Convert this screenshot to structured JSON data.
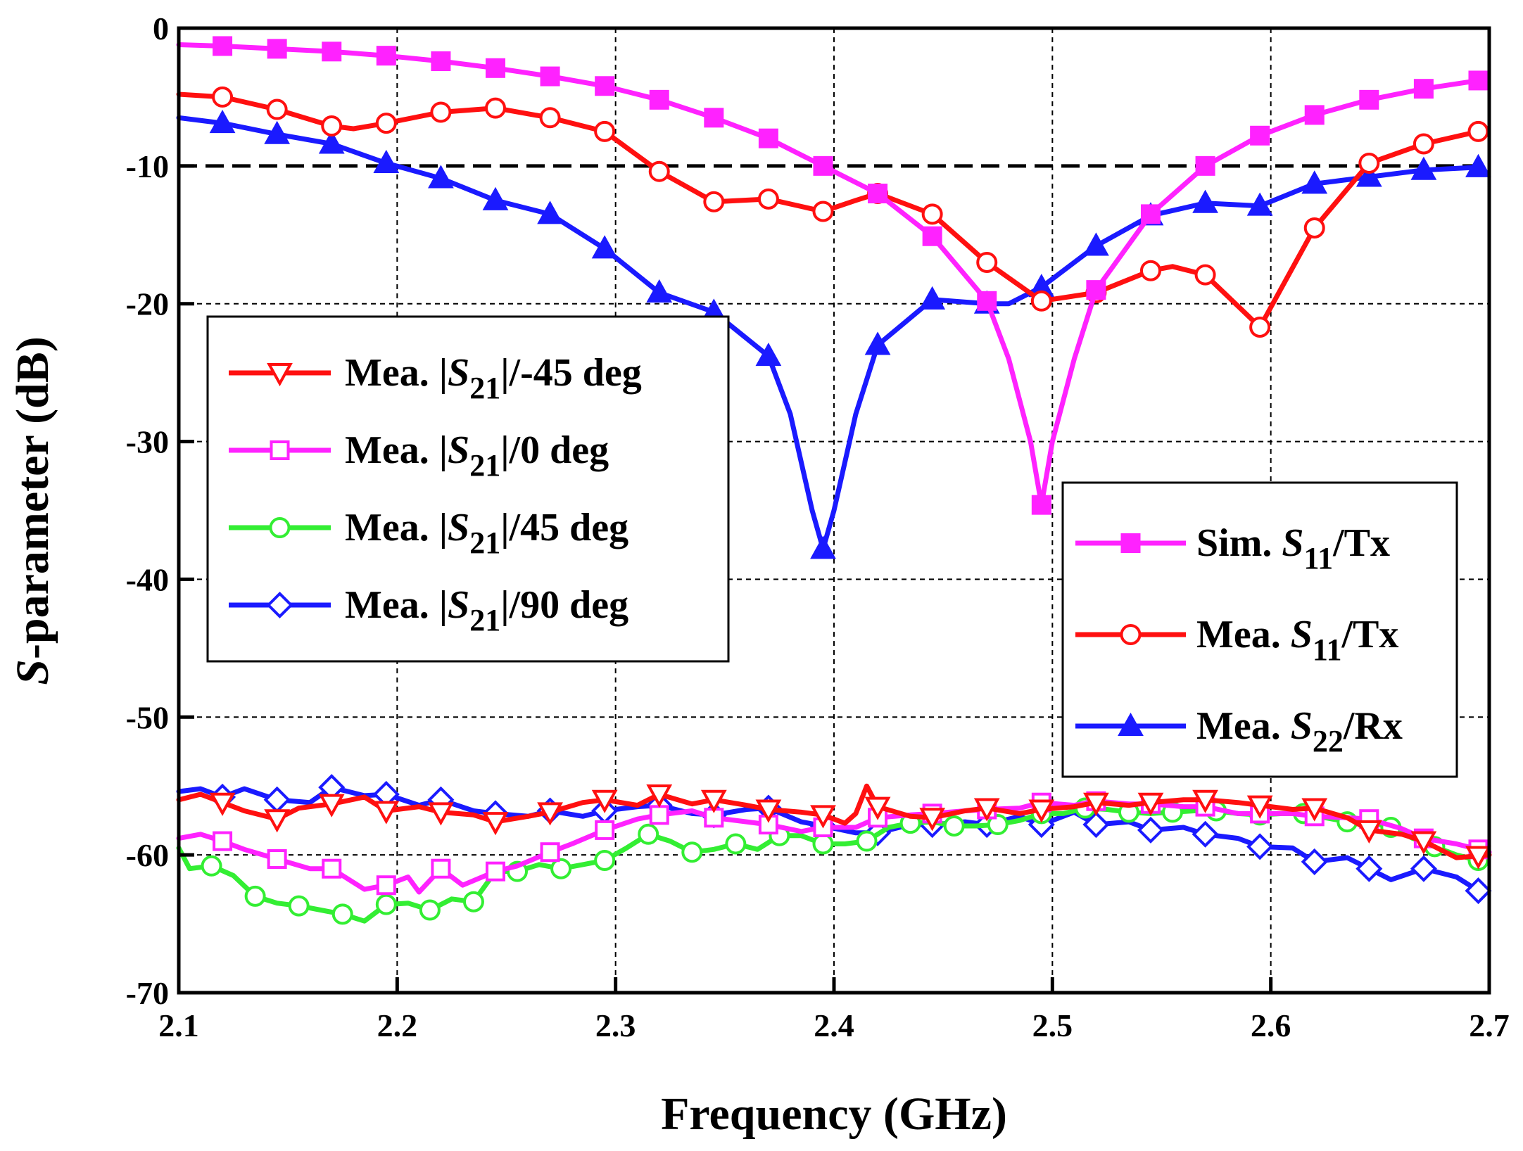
{
  "chart_data": {
    "type": "line",
    "xlabel": "Frequency (GHz)",
    "ylabel_italic": "S",
    "ylabel_rest": "-parameter (dB)",
    "xlim": [
      2.1,
      2.7
    ],
    "ylim": [
      -70,
      0
    ],
    "xticks": [
      "2.1",
      "2.2",
      "2.3",
      "2.4",
      "2.5",
      "2.6",
      "2.7"
    ],
    "yticks": [
      "0",
      "-10",
      "-20",
      "-30",
      "-40",
      "-50",
      "-60",
      "-70"
    ],
    "grid": true,
    "reference_line": {
      "y": -10,
      "style": "dashed"
    },
    "legend_left": {
      "placement": "middle-left",
      "entries": [
        {
          "series": "s21m45",
          "prefix": "Mea. |",
          "italic": "S",
          "sub": "21",
          "suffix": "|/-45 deg"
        },
        {
          "series": "s21_0",
          "prefix": "Mea. |",
          "italic": "S",
          "sub": "21",
          "suffix": "|/0 deg"
        },
        {
          "series": "s21_45",
          "prefix": "Mea. |",
          "italic": "S",
          "sub": "21",
          "suffix": "|/45 deg"
        },
        {
          "series": "s21_90",
          "prefix": "Mea. |",
          "italic": "S",
          "sub": "21",
          "suffix": "|/90 deg"
        }
      ]
    },
    "legend_right": {
      "placement": "lower-right",
      "entries": [
        {
          "series": "sim_s11",
          "prefix": "Sim. ",
          "italic": "S",
          "sub": "11",
          "suffix": "/Tx"
        },
        {
          "series": "mea_s11",
          "prefix": "Mea. ",
          "italic": "S",
          "sub": "11",
          "suffix": "/Tx"
        },
        {
          "series": "mea_s22",
          "prefix": "Mea. ",
          "italic": "S",
          "sub": "22",
          "suffix": "/Rx"
        }
      ]
    },
    "series": [
      {
        "id": "sim_s11",
        "name": "Sim. S11/Tx",
        "color": "#ff22ff",
        "marker": "square",
        "filled": true,
        "x": [
          2.1,
          2.12,
          2.145,
          2.17,
          2.195,
          2.22,
          2.245,
          2.27,
          2.295,
          2.32,
          2.345,
          2.37,
          2.395,
          2.42,
          2.445,
          2.47,
          2.48,
          2.49,
          2.495,
          2.5,
          2.51,
          2.52,
          2.545,
          2.57,
          2.595,
          2.62,
          2.645,
          2.67,
          2.695
        ],
        "y": [
          -1.2,
          -1.3,
          -1.5,
          -1.7,
          -2.0,
          -2.4,
          -2.9,
          -3.5,
          -4.2,
          -5.2,
          -6.5,
          -8.0,
          -10.0,
          -12.0,
          -15.1,
          -19.8,
          -24.0,
          -30.0,
          -34.6,
          -30.0,
          -24.0,
          -19.0,
          -13.5,
          -10.0,
          -7.8,
          -6.3,
          -5.2,
          -4.4,
          -3.8
        ],
        "marker_x": [
          2.12,
          2.145,
          2.17,
          2.195,
          2.22,
          2.245,
          2.27,
          2.295,
          2.32,
          2.345,
          2.37,
          2.395,
          2.42,
          2.445,
          2.47,
          2.495,
          2.52,
          2.545,
          2.57,
          2.595,
          2.62,
          2.645,
          2.67,
          2.695
        ]
      },
      {
        "id": "mea_s11",
        "name": "Mea. S11/Tx",
        "color": "#ff1010",
        "marker": "circle",
        "filled": false,
        "x": [
          2.1,
          2.12,
          2.145,
          2.17,
          2.18,
          2.195,
          2.22,
          2.245,
          2.27,
          2.295,
          2.32,
          2.345,
          2.37,
          2.395,
          2.41,
          2.42,
          2.445,
          2.47,
          2.495,
          2.52,
          2.545,
          2.555,
          2.57,
          2.595,
          2.62,
          2.645,
          2.67,
          2.695
        ],
        "y": [
          -4.8,
          -5.0,
          -5.9,
          -7.1,
          -7.3,
          -6.9,
          -6.1,
          -5.8,
          -6.5,
          -7.5,
          -10.4,
          -12.6,
          -12.4,
          -13.3,
          -12.5,
          -12.0,
          -13.5,
          -17.0,
          -19.8,
          -19.2,
          -17.6,
          -17.3,
          -17.9,
          -21.7,
          -14.5,
          -9.8,
          -8.4,
          -7.5
        ],
        "marker_x": [
          2.12,
          2.145,
          2.17,
          2.195,
          2.22,
          2.245,
          2.27,
          2.295,
          2.32,
          2.345,
          2.37,
          2.395,
          2.42,
          2.445,
          2.47,
          2.495,
          2.52,
          2.545,
          2.57,
          2.595,
          2.62,
          2.645,
          2.67,
          2.695
        ]
      },
      {
        "id": "mea_s22",
        "name": "Mea. S22/Rx",
        "color": "#1a1aff",
        "marker": "triangle-up",
        "filled": true,
        "x": [
          2.1,
          2.12,
          2.145,
          2.17,
          2.195,
          2.22,
          2.245,
          2.27,
          2.295,
          2.32,
          2.345,
          2.37,
          2.38,
          2.39,
          2.395,
          2.4,
          2.41,
          2.42,
          2.445,
          2.47,
          2.48,
          2.495,
          2.52,
          2.545,
          2.57,
          2.595,
          2.62,
          2.645,
          2.67,
          2.695
        ],
        "y": [
          -6.5,
          -6.9,
          -7.7,
          -8.4,
          -9.8,
          -10.9,
          -12.5,
          -13.5,
          -16.0,
          -19.2,
          -20.6,
          -23.8,
          -28.0,
          -35.0,
          -37.8,
          -35.0,
          -28.0,
          -23.0,
          -19.7,
          -20.0,
          -20.0,
          -18.8,
          -15.8,
          -13.6,
          -12.7,
          -12.9,
          -11.3,
          -10.8,
          -10.3,
          -10.1
        ],
        "marker_x": [
          2.12,
          2.145,
          2.17,
          2.195,
          2.22,
          2.245,
          2.27,
          2.295,
          2.32,
          2.345,
          2.37,
          2.395,
          2.42,
          2.445,
          2.47,
          2.495,
          2.52,
          2.545,
          2.57,
          2.595,
          2.62,
          2.645,
          2.67,
          2.695
        ]
      },
      {
        "id": "s21m45",
        "name": "Mea. |S21|/-45 deg",
        "color": "#ff1010",
        "marker": "triangle-down",
        "filled": false,
        "x": [
          2.1,
          2.11,
          2.12,
          2.13,
          2.145,
          2.155,
          2.17,
          2.185,
          2.195,
          2.21,
          2.22,
          2.235,
          2.245,
          2.26,
          2.27,
          2.285,
          2.295,
          2.31,
          2.32,
          2.335,
          2.345,
          2.36,
          2.37,
          2.385,
          2.395,
          2.405,
          2.41,
          2.415,
          2.42,
          2.435,
          2.445,
          2.46,
          2.47,
          2.485,
          2.495,
          2.51,
          2.52,
          2.535,
          2.545,
          2.56,
          2.57,
          2.585,
          2.595,
          2.61,
          2.62,
          2.635,
          2.645,
          2.66,
          2.67,
          2.685,
          2.7
        ],
        "y": [
          -56.0,
          -55.6,
          -56.2,
          -56.8,
          -57.4,
          -56.6,
          -56.3,
          -55.8,
          -56.8,
          -56.5,
          -56.9,
          -57.1,
          -57.6,
          -57.2,
          -56.9,
          -56.2,
          -56.0,
          -56.4,
          -55.6,
          -56.3,
          -56.0,
          -56.4,
          -56.7,
          -56.9,
          -57.1,
          -57.7,
          -57.0,
          -55.0,
          -56.5,
          -57.2,
          -57.3,
          -56.8,
          -56.6,
          -57.0,
          -56.7,
          -56.5,
          -56.2,
          -56.4,
          -56.2,
          -56.0,
          -56.0,
          -56.2,
          -56.4,
          -56.7,
          -56.6,
          -57.3,
          -58.2,
          -58.5,
          -59.0,
          -60.2,
          -60.0
        ],
        "marker_x": [
          2.12,
          2.145,
          2.17,
          2.195,
          2.22,
          2.245,
          2.27,
          2.295,
          2.32,
          2.345,
          2.37,
          2.395,
          2.42,
          2.445,
          2.47,
          2.495,
          2.52,
          2.545,
          2.57,
          2.595,
          2.62,
          2.645,
          2.67,
          2.695
        ]
      },
      {
        "id": "s21_0",
        "name": "Mea. |S21|/0 deg",
        "color": "#ff22ff",
        "marker": "square",
        "filled": false,
        "x": [
          2.1,
          2.11,
          2.12,
          2.13,
          2.145,
          2.16,
          2.17,
          2.185,
          2.195,
          2.205,
          2.21,
          2.22,
          2.23,
          2.245,
          2.255,
          2.27,
          2.28,
          2.295,
          2.31,
          2.32,
          2.335,
          2.345,
          2.36,
          2.37,
          2.385,
          2.395,
          2.41,
          2.42,
          2.435,
          2.445,
          2.46,
          2.47,
          2.485,
          2.495,
          2.51,
          2.52,
          2.535,
          2.545,
          2.56,
          2.57,
          2.585,
          2.595,
          2.61,
          2.62,
          2.635,
          2.645,
          2.66,
          2.67,
          2.685,
          2.7
        ],
        "y": [
          -58.8,
          -58.5,
          -59.0,
          -59.6,
          -60.3,
          -61.0,
          -61.0,
          -62.5,
          -62.2,
          -61.6,
          -62.7,
          -61.0,
          -62.2,
          -61.2,
          -60.8,
          -59.8,
          -59.2,
          -58.2,
          -57.4,
          -57.1,
          -56.8,
          -57.3,
          -57.6,
          -57.8,
          -58.3,
          -58.0,
          -58.0,
          -57.3,
          -57.1,
          -57.0,
          -56.8,
          -56.7,
          -56.6,
          -56.2,
          -56.4,
          -56.1,
          -56.3,
          -56.3,
          -56.5,
          -56.5,
          -57.0,
          -57.0,
          -57.0,
          -57.2,
          -57.3,
          -57.4,
          -58.1,
          -58.8,
          -59.2,
          -59.8
        ],
        "marker_x": [
          2.12,
          2.145,
          2.17,
          2.195,
          2.22,
          2.245,
          2.27,
          2.295,
          2.32,
          2.345,
          2.37,
          2.395,
          2.42,
          2.445,
          2.47,
          2.495,
          2.52,
          2.545,
          2.57,
          2.595,
          2.62,
          2.645,
          2.67,
          2.695
        ]
      },
      {
        "id": "s21_45",
        "name": "Mea. |S21|/45 deg",
        "color": "#33ee33",
        "marker": "circle",
        "filled": false,
        "x": [
          2.1,
          2.105,
          2.115,
          2.125,
          2.135,
          2.145,
          2.155,
          2.165,
          2.175,
          2.185,
          2.195,
          2.205,
          2.215,
          2.225,
          2.235,
          2.245,
          2.255,
          2.265,
          2.275,
          2.285,
          2.295,
          2.305,
          2.315,
          2.325,
          2.335,
          2.345,
          2.355,
          2.365,
          2.375,
          2.385,
          2.395,
          2.405,
          2.415,
          2.425,
          2.435,
          2.445,
          2.455,
          2.465,
          2.475,
          2.485,
          2.495,
          2.505,
          2.515,
          2.525,
          2.535,
          2.545,
          2.555,
          2.565,
          2.575,
          2.585,
          2.595,
          2.605,
          2.615,
          2.625,
          2.635,
          2.645,
          2.655,
          2.665,
          2.675,
          2.685,
          2.695
        ],
        "y": [
          -59.5,
          -61.0,
          -60.8,
          -61.5,
          -63.0,
          -63.5,
          -63.7,
          -64.0,
          -64.3,
          -64.8,
          -63.6,
          -63.5,
          -64.0,
          -63.2,
          -63.4,
          -61.2,
          -61.2,
          -60.7,
          -61.0,
          -60.7,
          -60.4,
          -59.5,
          -58.5,
          -59.0,
          -59.8,
          -59.6,
          -59.2,
          -59.6,
          -58.6,
          -58.6,
          -59.2,
          -59.2,
          -59.0,
          -58.0,
          -57.7,
          -57.6,
          -57.9,
          -57.9,
          -57.8,
          -57.5,
          -57.0,
          -57.0,
          -56.6,
          -56.7,
          -56.9,
          -57.0,
          -56.9,
          -56.8,
          -56.8,
          -57.0,
          -57.1,
          -57.0,
          -57.0,
          -57.3,
          -57.6,
          -57.6,
          -58.0,
          -58.8,
          -59.4,
          -60.0,
          -60.4
        ],
        "marker_x": [
          2.115,
          2.135,
          2.155,
          2.175,
          2.195,
          2.215,
          2.235,
          2.255,
          2.275,
          2.295,
          2.315,
          2.335,
          2.355,
          2.375,
          2.395,
          2.415,
          2.435,
          2.455,
          2.475,
          2.495,
          2.515,
          2.535,
          2.555,
          2.575,
          2.595,
          2.615,
          2.635,
          2.655,
          2.675,
          2.695
        ]
      },
      {
        "id": "s21_90",
        "name": "Mea. |S21|/90 deg",
        "color": "#1a1aff",
        "marker": "diamond",
        "filled": false,
        "x": [
          2.1,
          2.11,
          2.12,
          2.13,
          2.145,
          2.16,
          2.17,
          2.185,
          2.195,
          2.21,
          2.22,
          2.235,
          2.245,
          2.26,
          2.27,
          2.285,
          2.295,
          2.31,
          2.32,
          2.335,
          2.345,
          2.36,
          2.37,
          2.385,
          2.395,
          2.41,
          2.42,
          2.435,
          2.445,
          2.46,
          2.47,
          2.485,
          2.495,
          2.51,
          2.52,
          2.535,
          2.545,
          2.56,
          2.57,
          2.585,
          2.595,
          2.61,
          2.62,
          2.635,
          2.645,
          2.655,
          2.67,
          2.685,
          2.695
        ],
        "y": [
          -55.4,
          -55.2,
          -55.8,
          -55.2,
          -56.0,
          -56.2,
          -55.1,
          -55.7,
          -55.6,
          -56.4,
          -56.0,
          -56.8,
          -57.0,
          -57.2,
          -56.8,
          -57.2,
          -56.8,
          -56.5,
          -56.4,
          -57.0,
          -57.1,
          -56.7,
          -56.6,
          -57.6,
          -57.9,
          -58.4,
          -58.4,
          -57.8,
          -57.8,
          -57.6,
          -57.8,
          -57.2,
          -57.8,
          -56.9,
          -57.8,
          -57.6,
          -58.2,
          -58.0,
          -58.5,
          -58.8,
          -59.4,
          -59.5,
          -60.5,
          -60.2,
          -61.0,
          -61.8,
          -61.0,
          -61.6,
          -62.6
        ],
        "marker_x": [
          2.12,
          2.145,
          2.17,
          2.195,
          2.22,
          2.245,
          2.27,
          2.295,
          2.32,
          2.345,
          2.37,
          2.395,
          2.42,
          2.445,
          2.47,
          2.495,
          2.52,
          2.545,
          2.57,
          2.595,
          2.62,
          2.645,
          2.67,
          2.695
        ]
      }
    ]
  }
}
